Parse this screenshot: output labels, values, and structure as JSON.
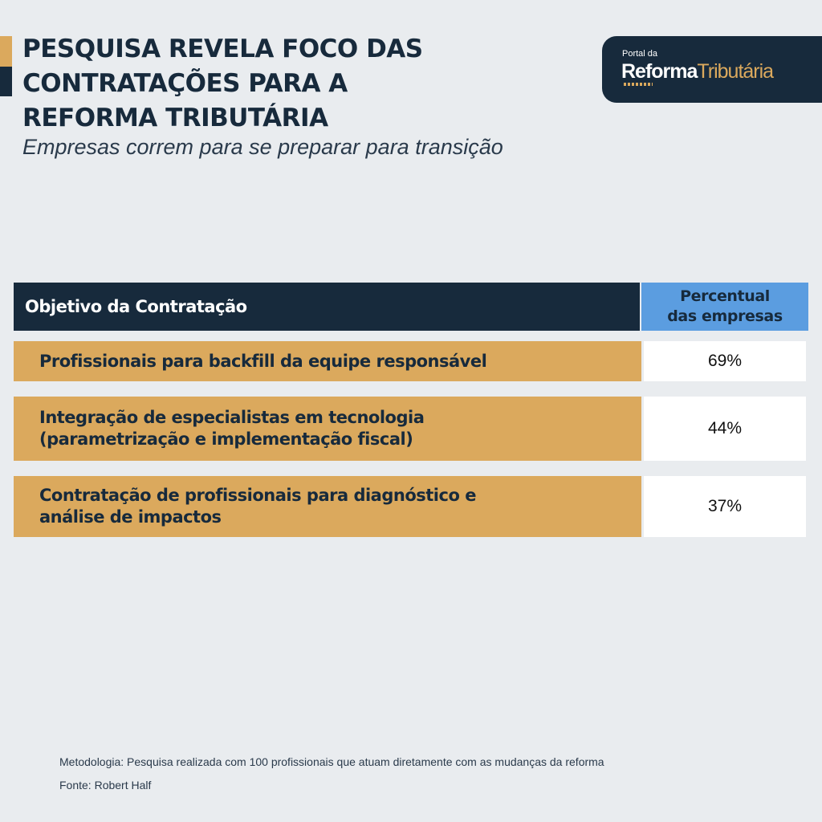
{
  "header": {
    "title_lines": [
      "PESQUISA REVELA FOCO DAS",
      "CONTRATAÇÕES PARA A",
      "REFORMA TRIBUTÁRIA"
    ],
    "subtitle": "Empresas correm para se preparar para transição"
  },
  "logo": {
    "small_text": "Portal da",
    "main_text_a": "Reforma",
    "main_text_b": "Tributária"
  },
  "chart_data": {
    "type": "table",
    "columns": [
      "Objetivo da Contratação",
      "Percentual das empresas"
    ],
    "column_header_lines": [
      "Percentual",
      "das empresas"
    ],
    "rows": [
      {
        "label_lines": [
          "Profissionais para backfill da equipe responsável"
        ],
        "value": 69,
        "display": "69%"
      },
      {
        "label_lines": [
          "Integração de especialistas em tecnologia",
          "(parametrização e implementação fiscal)"
        ],
        "value": 44,
        "display": "44%"
      },
      {
        "label_lines": [
          "Contratação de profissionais para diagnóstico e",
          "análise de impactos"
        ],
        "value": 37,
        "display": "37%"
      }
    ],
    "unit": "%"
  },
  "footer": {
    "methodology": "Metodologia: Pesquisa realizada com 100 profissionais que atuam diretamente com as mudanças da reforma",
    "source": "Fonte: Robert Half"
  },
  "colors": {
    "background": "#e9ecef",
    "navy": "#172a3c",
    "gold": "#dba95d",
    "blue": "#5b9de0",
    "white": "#ffffff"
  }
}
